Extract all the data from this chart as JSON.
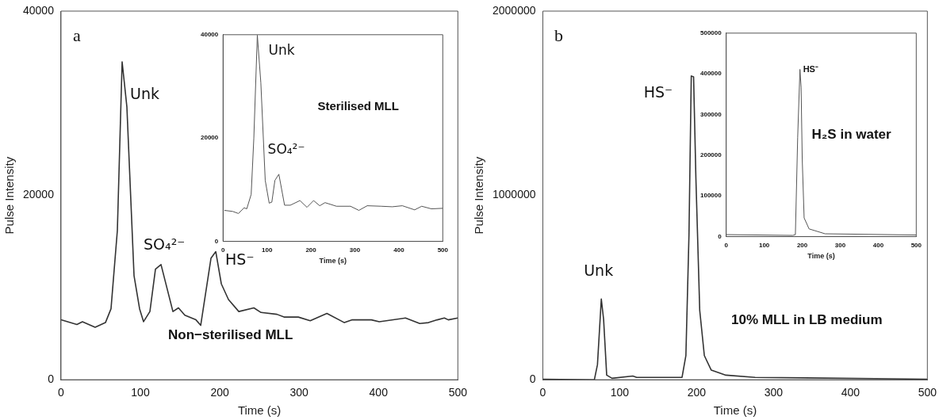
{
  "chart_data": [
    {
      "type": "line",
      "xlabel": "Time (s)",
      "ylabel": "Pulse Intensity",
      "color": "#333333",
      "x": [
        0,
        20,
        27,
        43,
        56,
        63,
        71,
        77,
        83,
        92,
        99,
        104,
        112,
        119,
        126,
        141,
        148,
        156,
        170,
        176,
        189,
        195,
        202,
        211,
        224,
        243,
        252,
        272,
        281,
        299,
        314,
        335,
        357,
        367,
        391,
        401,
        434,
        452,
        463,
        474,
        483,
        488,
        500
      ],
      "values": [
        6500,
        6000,
        6300,
        5700,
        6200,
        7700,
        16200,
        34500,
        29600,
        11300,
        7700,
        6300,
        7400,
        12000,
        12500,
        7400,
        7800,
        7000,
        6500,
        5900,
        13200,
        13900,
        10400,
        8700,
        7400,
        7800,
        7300,
        7100,
        6800,
        6800,
        6400,
        7200,
        6200,
        6500,
        6500,
        6300,
        6700,
        6100,
        6200,
        6500,
        6700,
        6500,
        6700
      ],
      "xlim": [
        0,
        500
      ],
      "xticks": [
        0,
        100,
        200,
        300,
        400,
        500
      ],
      "ylim": [
        0,
        40000
      ],
      "yticks": [
        0,
        20000,
        40000
      ],
      "annotations": [
        "a",
        {
          "text": "Unk",
          "x": 77,
          "y": 34500
        },
        {
          "text": "SO₄²⁻",
          "x": 126,
          "y": 12500
        },
        {
          "text": "HS⁻",
          "x": 195,
          "y": 13900
        },
        "Non−sterilised MLL"
      ]
    },
    {
      "type": "line",
      "xlabel": "Time (s)",
      "color": "#555555",
      "x": [
        3,
        22,
        35,
        48,
        54,
        64,
        70,
        78,
        86,
        96,
        105,
        111,
        118,
        127,
        140,
        153,
        175,
        191,
        206,
        220,
        232,
        258,
        290,
        309,
        328,
        360,
        385,
        408,
        436,
        452,
        474,
        500
      ],
      "values": [
        6000,
        5800,
        5400,
        6500,
        6300,
        9100,
        19900,
        39900,
        30700,
        11800,
        7400,
        7600,
        11800,
        13000,
        7000,
        7000,
        7900,
        6600,
        7900,
        6900,
        7500,
        6800,
        6800,
        6000,
        6900,
        6800,
        6700,
        6900,
        6100,
        6800,
        6300,
        6400
      ],
      "xlim": [
        0,
        500
      ],
      "xticks": [
        0,
        100,
        200,
        300,
        400,
        500
      ],
      "ylim": [
        0,
        40000
      ],
      "yticks": [
        0,
        20000,
        40000
      ],
      "annotations": [
        {
          "text": "Unk",
          "x": 78,
          "y": 39900
        },
        {
          "text": "SO₄²⁻",
          "x": 127,
          "y": 13000
        },
        "Sterilised MLL"
      ]
    },
    {
      "type": "line",
      "xlabel": "Time (s)",
      "ylabel": "Pulse Intensity",
      "color": "#333333",
      "x": [
        0,
        67,
        71,
        76,
        79,
        83,
        90,
        117,
        122,
        181,
        186,
        190,
        193,
        196,
        199,
        204,
        210,
        219,
        238,
        276,
        500
      ],
      "values": [
        3000,
        0,
        82000,
        438000,
        327000,
        25000,
        8000,
        20000,
        13000,
        13000,
        131000,
        785000,
        1648000,
        1643000,
        1095000,
        376000,
        131000,
        52000,
        25000,
        13000,
        3000
      ],
      "xlim": [
        0,
        500
      ],
      "xticks": [
        0,
        100,
        200,
        300,
        400,
        500
      ],
      "ylim": [
        0,
        2000000
      ],
      "yticks": [
        0,
        1000000,
        2000000
      ],
      "annotations": [
        "b",
        {
          "text": "Unk",
          "x": 76,
          "y": 438000
        },
        {
          "text": "HS⁻",
          "x": 193,
          "y": 1648000
        },
        "10% MLL in LB medium"
      ]
    },
    {
      "type": "line",
      "xlabel": "Time (s)",
      "color": "#555555",
      "x": [
        0,
        175,
        182,
        188,
        194,
        197,
        200,
        205,
        218,
        260,
        500
      ],
      "values": [
        5000,
        3000,
        5000,
        244000,
        411000,
        367000,
        190000,
        46000,
        19000,
        7000,
        4000
      ],
      "xlim": [
        0,
        500
      ],
      "xticks": [
        0,
        100,
        200,
        300,
        400,
        500
      ],
      "ylim": [
        0,
        500000
      ],
      "yticks": [
        0,
        100000,
        200000,
        300000,
        400000,
        500000
      ],
      "annotations": [
        {
          "text": "HS⁻",
          "x": 194,
          "y": 411000
        },
        "H₂S in water"
      ]
    }
  ]
}
